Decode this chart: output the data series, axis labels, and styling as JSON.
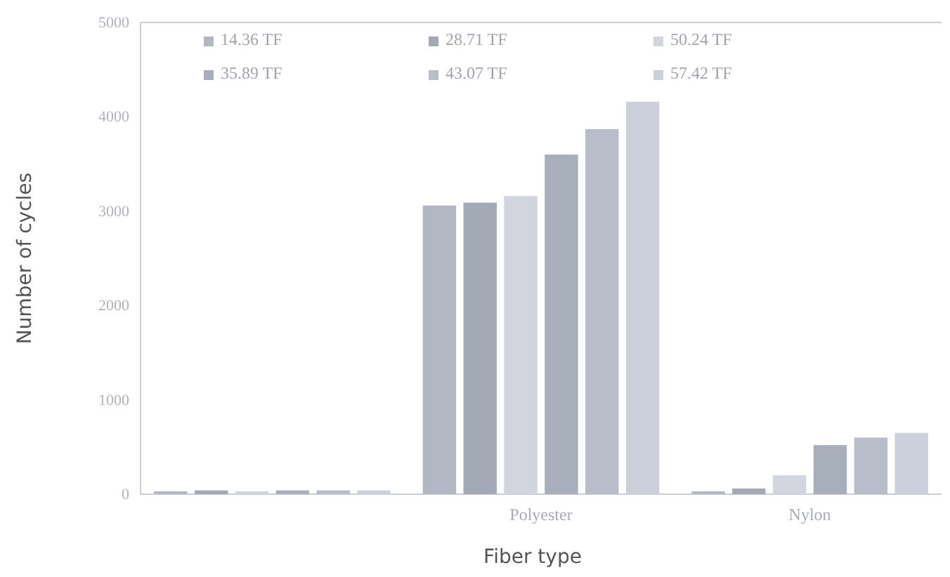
{
  "chart_data": {
    "type": "bar",
    "xlabel": "Fiber type",
    "ylabel": "Number of cycles",
    "categories": [
      null,
      "Polyester",
      "Nylon"
    ],
    "series": [
      {
        "name": "14.36 TF",
        "color": "#b3b7c3",
        "values": [
          30,
          3060,
          30
        ]
      },
      {
        "name": "28.71 TF",
        "color": "#a4a9b6",
        "values": [
          40,
          3090,
          60
        ]
      },
      {
        "name": "50.24 TF",
        "color": "#d2d5dd",
        "values": [
          30,
          3160,
          200
        ]
      },
      {
        "name": "35.89 TF",
        "color": "#a9aebb",
        "values": [
          40,
          3600,
          520
        ]
      },
      {
        "name": "43.07 TF",
        "color": "#b9bdc9",
        "values": [
          40,
          3870,
          600
        ]
      },
      {
        "name": "57.42 TF",
        "color": "#ccd0da",
        "values": [
          40,
          4160,
          650
        ]
      }
    ],
    "ylim": [
      0,
      5000
    ],
    "yticks": [
      0,
      1000,
      2000,
      3000,
      4000,
      5000
    ],
    "grid": false,
    "legend": "top"
  }
}
